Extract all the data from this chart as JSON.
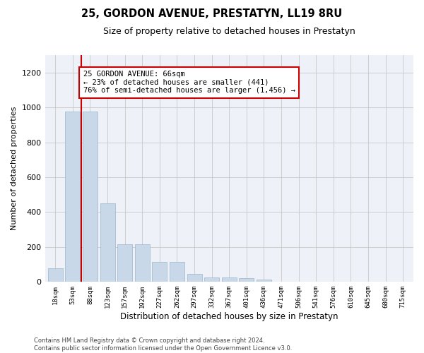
{
  "title": "25, GORDON AVENUE, PRESTATYN, LL19 8RU",
  "subtitle": "Size of property relative to detached houses in Prestatyn",
  "xlabel": "Distribution of detached houses by size in Prestatyn",
  "ylabel": "Number of detached properties",
  "bar_color": "#c8d8e8",
  "bar_edgecolor": "#9ab5cc",
  "grid_color": "#c8c8c8",
  "bg_color": "#eef2f8",
  "categories": [
    "18sqm",
    "53sqm",
    "88sqm",
    "123sqm",
    "157sqm",
    "192sqm",
    "227sqm",
    "262sqm",
    "297sqm",
    "332sqm",
    "367sqm",
    "401sqm",
    "436sqm",
    "471sqm",
    "506sqm",
    "541sqm",
    "576sqm",
    "610sqm",
    "645sqm",
    "680sqm",
    "715sqm"
  ],
  "values": [
    80,
    975,
    975,
    450,
    215,
    215,
    115,
    115,
    47,
    25,
    25,
    22,
    14,
    0,
    0,
    0,
    0,
    0,
    0,
    0,
    0
  ],
  "ylim": [
    0,
    1300
  ],
  "yticks": [
    0,
    200,
    400,
    600,
    800,
    1000,
    1200
  ],
  "annotation_line1": "25 GORDON AVENUE: 66sqm",
  "annotation_line2": "← 23% of detached houses are smaller (441)",
  "annotation_line3": "76% of semi-detached houses are larger (1,456) →",
  "vline_x": 1.5,
  "vline_color": "#cc0000",
  "ann_box_color": "#cc0000",
  "footer": "Contains HM Land Registry data © Crown copyright and database right 2024.\nContains public sector information licensed under the Open Government Licence v3.0."
}
